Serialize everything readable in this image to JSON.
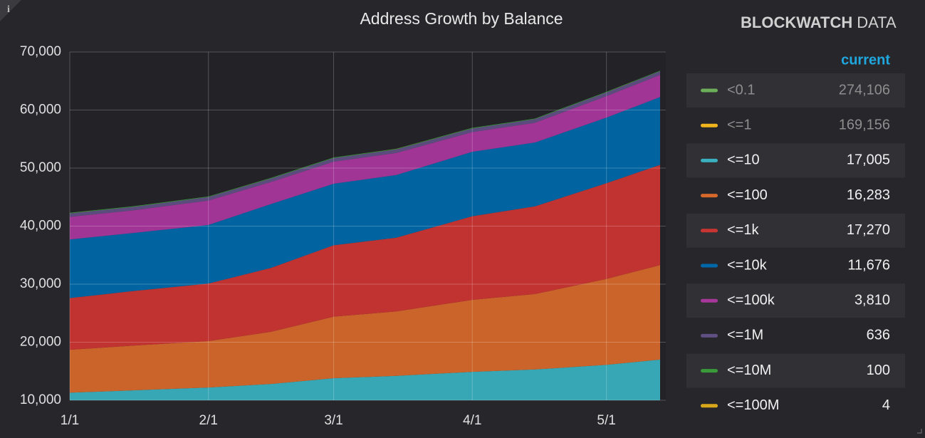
{
  "chart_data": {
    "type": "stacked-area",
    "title": "Address Growth by Balance",
    "brand": {
      "bold": "BLOCKWATCH",
      "light": "DATA"
    },
    "x": [
      "1/1",
      "1/15",
      "2/1",
      "2/15",
      "3/1",
      "3/15",
      "4/1",
      "4/15",
      "5/1",
      "5/13"
    ],
    "xlim": [
      "1/1",
      "5/13"
    ],
    "xticks": [
      "1/1",
      "2/1",
      "3/1",
      "4/1",
      "5/1"
    ],
    "ylim": [
      10000,
      70000
    ],
    "yticks": [
      {
        "value": 10000,
        "label": "10,000"
      },
      {
        "value": 20000,
        "label": "20,000"
      },
      {
        "value": 30000,
        "label": "30,000"
      },
      {
        "value": 40000,
        "label": "40,000"
      },
      {
        "value": 50000,
        "label": "50,000"
      },
      {
        "value": 60000,
        "label": "60,000"
      },
      {
        "value": 70000,
        "label": "70,000"
      }
    ],
    "grid": true,
    "legend_header": "current",
    "series": [
      {
        "name": "<0.1",
        "color": "#6cae5a",
        "visible": false,
        "current": "274,106"
      },
      {
        "name": "<=1",
        "color": "#f0b41c",
        "visible": false,
        "current": "169,156"
      },
      {
        "name": "<=10",
        "color": "#3aafbd",
        "visible": true,
        "current": "17,005",
        "values": [
          11300,
          11700,
          12200,
          12800,
          13800,
          14200,
          14900,
          15300,
          16100,
          17005
        ]
      },
      {
        "name": "<=100",
        "color": "#d5682a",
        "visible": true,
        "current": "16,283",
        "values": [
          7400,
          7700,
          8000,
          9000,
          10600,
          11100,
          12400,
          13000,
          14800,
          16283
        ]
      },
      {
        "name": "<=1k",
        "color": "#c93532",
        "visible": true,
        "current": "17,270",
        "values": [
          8900,
          9400,
          9900,
          11000,
          12300,
          12700,
          14400,
          15100,
          16500,
          17270
        ]
      },
      {
        "name": "<=10k",
        "color": "#0068a8",
        "visible": true,
        "current": "11,676",
        "values": [
          10100,
          10000,
          10100,
          11000,
          10600,
          10800,
          11100,
          11000,
          11300,
          11676
        ]
      },
      {
        "name": "<=100k",
        "color": "#a8379c",
        "visible": true,
        "current": "3,810",
        "values": [
          3900,
          3900,
          4200,
          3800,
          3800,
          3800,
          3400,
          3400,
          3700,
          3810
        ]
      },
      {
        "name": "<=1M",
        "color": "#5f4f82",
        "visible": true,
        "current": "636",
        "values": [
          600,
          600,
          610,
          610,
          620,
          620,
          625,
          630,
          632,
          636
        ]
      },
      {
        "name": "<=10M",
        "color": "#3a9a3a",
        "visible": true,
        "current": "100",
        "values": [
          100,
          100,
          100,
          100,
          100,
          100,
          100,
          100,
          100,
          100
        ]
      },
      {
        "name": "<=100M",
        "color": "#d8a81a",
        "visible": true,
        "current": "4",
        "values": [
          4,
          4,
          4,
          4,
          4,
          4,
          4,
          4,
          4,
          4
        ]
      }
    ]
  }
}
